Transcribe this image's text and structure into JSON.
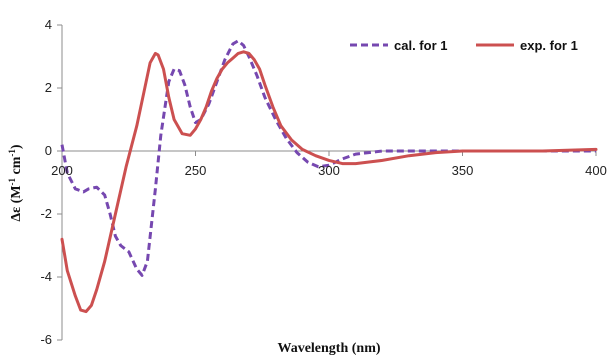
{
  "chart_data": {
    "type": "line",
    "xlabel": "Wavelength (nm)",
    "ylabel": "Δε (M",
    "ylabel_parts": {
      "sup1": "-1",
      "mid": " cm",
      "sup2": "-1",
      "end": ")"
    },
    "xlim": [
      200,
      400
    ],
    "ylim": [
      -6,
      4
    ],
    "xticks": [
      200,
      250,
      300,
      350,
      400
    ],
    "yticks": [
      -6,
      -4,
      -2,
      0,
      2,
      4
    ],
    "grid": false,
    "legend_position": "top-right",
    "series": [
      {
        "name": "cal. for 1",
        "color": "#7648b0",
        "style": "dashed",
        "x": [
          200,
          202,
          205,
          208,
          210,
          213,
          216,
          218,
          220,
          222,
          225,
          228,
          230,
          232,
          235,
          237,
          240,
          242,
          244,
          246,
          248,
          250,
          252,
          255,
          258,
          261,
          264,
          266,
          268,
          270,
          273,
          276,
          280,
          284,
          288,
          292,
          296,
          300,
          305,
          310,
          320,
          340,
          360,
          380,
          400
        ],
        "y": [
          0.2,
          -0.7,
          -1.2,
          -1.3,
          -1.2,
          -1.15,
          -1.4,
          -2.0,
          -2.7,
          -3.0,
          -3.2,
          -3.75,
          -3.95,
          -3.5,
          -1.2,
          0.5,
          2.2,
          2.6,
          2.55,
          2.1,
          1.4,
          0.9,
          1.0,
          1.5,
          2.2,
          2.9,
          3.4,
          3.5,
          3.35,
          3.0,
          2.4,
          1.7,
          1.0,
          0.4,
          -0.05,
          -0.35,
          -0.5,
          -0.45,
          -0.25,
          -0.1,
          0.0,
          0.0,
          0.0,
          0.0,
          0.0
        ]
      },
      {
        "name": "exp. for 1",
        "color": "#cc5050",
        "style": "solid",
        "x": [
          200,
          202,
          205,
          207,
          209,
          211,
          213,
          216,
          220,
          224,
          228,
          231,
          233,
          235,
          236,
          238,
          240,
          242,
          245,
          248,
          250,
          252,
          254,
          256,
          258,
          260,
          262,
          264,
          266,
          268,
          270,
          272,
          274,
          276,
          279,
          282,
          286,
          290,
          295,
          300,
          305,
          310,
          315,
          320,
          330,
          340,
          350,
          360,
          380,
          400
        ],
        "y": [
          -2.8,
          -3.8,
          -4.6,
          -5.05,
          -5.1,
          -4.9,
          -4.4,
          -3.5,
          -2.0,
          -0.5,
          0.8,
          2.0,
          2.8,
          3.1,
          3.05,
          2.6,
          1.7,
          1.0,
          0.55,
          0.5,
          0.7,
          1.0,
          1.4,
          1.9,
          2.3,
          2.6,
          2.8,
          2.95,
          3.1,
          3.15,
          3.1,
          2.9,
          2.6,
          2.1,
          1.4,
          0.8,
          0.35,
          0.05,
          -0.15,
          -0.3,
          -0.4,
          -0.4,
          -0.35,
          -0.3,
          -0.15,
          -0.05,
          0.0,
          0.0,
          0.0,
          0.05
        ]
      }
    ]
  }
}
